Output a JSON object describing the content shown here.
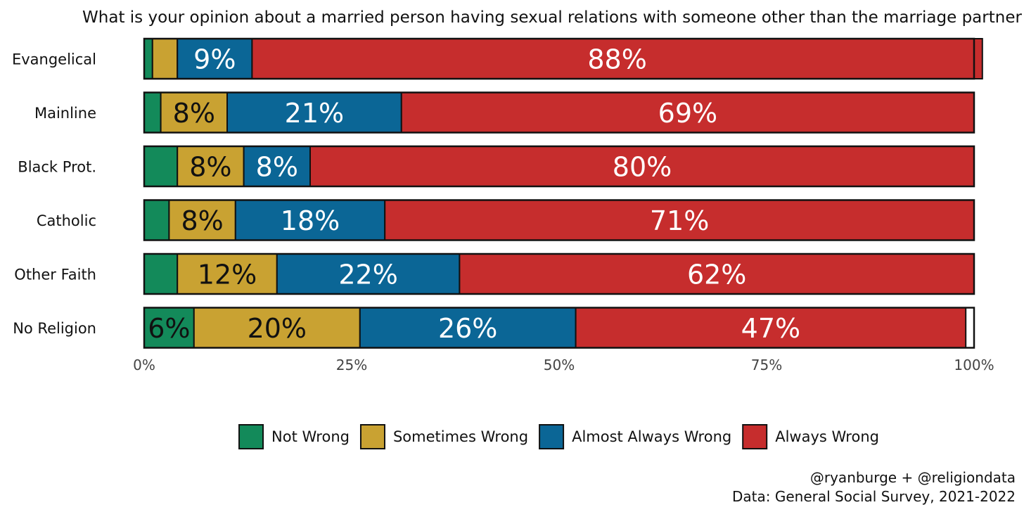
{
  "chart_data": {
    "type": "bar",
    "orientation": "horizontal",
    "stacked": true,
    "title": "What is your opinion about a married person having sexual relations with someone other than the marriage partner",
    "categories": [
      "Evangelical",
      "Mainline",
      "Black Prot.",
      "Catholic",
      "Other Faith",
      "No Religion"
    ],
    "series": [
      {
        "name": "Not Wrong",
        "color": "#138a5a",
        "text_color": "#111111",
        "values": [
          1,
          2,
          4,
          3,
          4,
          6
        ]
      },
      {
        "name": "Sometimes Wrong",
        "color": "#c9a232",
        "text_color": "#111111",
        "values": [
          3,
          8,
          8,
          8,
          12,
          20
        ]
      },
      {
        "name": "Almost Always Wrong",
        "color": "#0b6696",
        "text_color": "#ffffff",
        "values": [
          9,
          21,
          8,
          18,
          22,
          26
        ]
      },
      {
        "name": "Always Wrong",
        "color": "#c62d2d",
        "text_color": "#ffffff",
        "values": [
          88,
          69,
          80,
          71,
          62,
          47
        ]
      }
    ],
    "data_labels": [
      [
        "",
        "",
        "9%",
        "88%"
      ],
      [
        "",
        "8%",
        "21%",
        "69%"
      ],
      [
        "",
        "8%",
        "8%",
        "80%"
      ],
      [
        "",
        "8%",
        "18%",
        "71%"
      ],
      [
        "",
        "12%",
        "22%",
        "62%"
      ],
      [
        "6%",
        "20%",
        "26%",
        "47%"
      ]
    ],
    "xlim": [
      0,
      100
    ],
    "xticks": [
      0,
      25,
      50,
      75,
      100
    ],
    "xtick_labels": [
      "0%",
      "25%",
      "50%",
      "75%",
      "100%"
    ],
    "legend_position": "bottom",
    "grid": false
  },
  "caption": {
    "line1": "@ryanburge + @religiondata",
    "line2": "Data: General Social Survey, 2021-2022"
  }
}
